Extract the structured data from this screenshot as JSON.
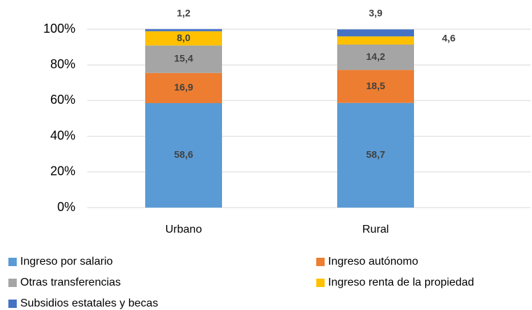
{
  "chart_data": {
    "type": "stacked_bar",
    "categories": [
      "Urbano",
      "Rural"
    ],
    "series": [
      {
        "name": "Ingreso por salario",
        "color": "#5b9bd5",
        "values": [
          58.6,
          58.7
        ],
        "value_labels": [
          "58,6",
          "58,7"
        ]
      },
      {
        "name": "Ingreso autónomo",
        "color": "#ed7d31",
        "values": [
          16.9,
          18.5
        ],
        "value_labels": [
          "16,9",
          "18,5"
        ]
      },
      {
        "name": "Otras transferencias",
        "color": "#a5a5a5",
        "values": [
          15.4,
          14.2
        ],
        "value_labels": [
          "15,4",
          "14,2"
        ]
      },
      {
        "name": "Ingreso renta de la propiedad",
        "color": "#ffc000",
        "values": [
          8.0,
          4.6
        ],
        "value_labels": [
          "8,0",
          "4,6"
        ]
      },
      {
        "name": "Subsidios estatales y becas",
        "color": "#4472c4",
        "values": [
          1.2,
          3.9
        ],
        "value_labels": [
          "1,2",
          "3,9"
        ]
      }
    ],
    "ylim": [
      0,
      100
    ],
    "yticks": [
      {
        "value": 0,
        "label": "0%"
      },
      {
        "value": 20,
        "label": "20%"
      },
      {
        "value": 40,
        "label": "40%"
      },
      {
        "value": 60,
        "label": "60%"
      },
      {
        "value": 80,
        "label": "80%"
      },
      {
        "value": 100,
        "label": "100%"
      }
    ],
    "grid": true
  }
}
